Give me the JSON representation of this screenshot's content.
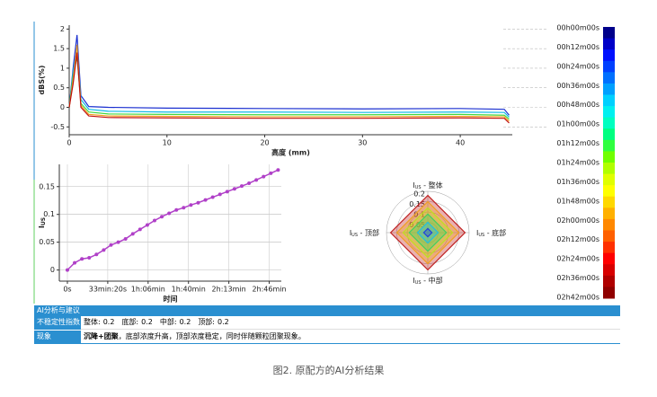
{
  "chart_data": [
    {
      "type": "line",
      "ylabel": "dBS(%)",
      "xlabel": "高度 (mm)",
      "x": [
        0,
        0.4,
        0.8,
        1.2,
        2,
        4,
        10,
        20,
        30,
        40,
        44.5,
        45
      ],
      "series": [
        {
          "color": "#1a2fd0",
          "values": [
            0,
            1.0,
            1.85,
            0.3,
            0.02,
            0,
            -0.02,
            -0.03,
            -0.04,
            -0.03,
            -0.05,
            -0.2
          ]
        },
        {
          "color": "#10b8e8",
          "values": [
            0,
            0.9,
            1.5,
            0.2,
            -0.05,
            -0.1,
            -0.12,
            -0.12,
            -0.13,
            -0.12,
            -0.13,
            -0.25
          ]
        },
        {
          "color": "#40d840",
          "values": [
            0,
            0.8,
            1.3,
            0.1,
            -0.12,
            -0.17,
            -0.18,
            -0.19,
            -0.19,
            -0.18,
            -0.2,
            -0.3
          ]
        },
        {
          "color": "#f0a020",
          "values": [
            0,
            0.7,
            1.6,
            0.05,
            -0.18,
            -0.22,
            -0.23,
            -0.24,
            -0.24,
            -0.23,
            -0.24,
            -0.35
          ]
        },
        {
          "color": "#c01010",
          "values": [
            0,
            0.6,
            1.4,
            0,
            -0.22,
            -0.26,
            -0.27,
            -0.28,
            -0.28,
            -0.27,
            -0.28,
            -0.4
          ]
        }
      ],
      "xlim": [
        0,
        49
      ],
      "xticks": [
        0,
        10,
        20,
        30,
        40
      ],
      "ylim": [
        -0.7,
        2.1
      ],
      "yticks": [
        -0.5,
        0,
        0.5,
        1,
        1.5,
        2
      ],
      "grid": true,
      "colorbar": {
        "colors": [
          "#00008b",
          "#0000c8",
          "#0010ff",
          "#0040ff",
          "#0070ff",
          "#00a0ff",
          "#00d0ff",
          "#00f0f0",
          "#00ffc0",
          "#00ff80",
          "#30ff40",
          "#70ff00",
          "#b0ff00",
          "#e0ff00",
          "#ffff00",
          "#ffd800",
          "#ffb000",
          "#ff8800",
          "#ff6000",
          "#ff3000",
          "#ff0000",
          "#d80000",
          "#b00000",
          "#900000"
        ],
        "labels": [
          "00h00m00s",
          "00h12m00s",
          "00h24m00s",
          "00h36m00s",
          "00h48m00s",
          "01h00m00s",
          "01h12m00s",
          "01h24m00s",
          "01h36m00s",
          "01h48m00s",
          "02h00m00s",
          "02h12m00s",
          "02h24m00s",
          "02h36m00s",
          "02h42m00s"
        ]
      }
    },
    {
      "type": "line",
      "ylabel": "I",
      "ylabel_sub": "US",
      "xlabel": "时间",
      "color": "#b040c8",
      "x": [
        0,
        360,
        720,
        1080,
        1440,
        1800,
        2160,
        2520,
        2880,
        3240,
        3600,
        3960,
        4320,
        4680,
        5040,
        5400,
        5760,
        6120,
        6480,
        6840,
        7200,
        7560,
        7920,
        8280,
        8640,
        9000,
        9360,
        9720,
        10080,
        10440
      ],
      "values": [
        0,
        0.013,
        0.02,
        0.022,
        0.028,
        0.036,
        0.045,
        0.05,
        0.056,
        0.065,
        0.073,
        0.081,
        0.089,
        0.096,
        0.102,
        0.108,
        0.112,
        0.117,
        0.121,
        0.126,
        0.131,
        0.136,
        0.141,
        0.146,
        0.151,
        0.156,
        0.162,
        0.168,
        0.174,
        0.18
      ],
      "xlim": [
        -400,
        10600
      ],
      "xticks": [
        {
          "value": 0,
          "label": "0s"
        },
        {
          "value": 2000,
          "label": "33min:20s"
        },
        {
          "value": 4000,
          "label": "1h:06min"
        },
        {
          "value": 6000,
          "label": "1h:40min"
        },
        {
          "value": 8000,
          "label": "2h:13min"
        },
        {
          "value": 10000,
          "label": "2h:46min"
        }
      ],
      "ylim": [
        -0.02,
        0.19
      ],
      "yticks": [
        0,
        0.05,
        0.1,
        0.15
      ],
      "grid": true
    },
    {
      "type": "radar",
      "axes": [
        {
          "main": "I",
          "sub": "US",
          "label": " - 整体"
        },
        {
          "main": "I",
          "sub": "US",
          "label": " - 底部"
        },
        {
          "main": "I",
          "sub": "US",
          "label": " - 中部"
        },
        {
          "main": "I",
          "sub": "US",
          "label": " - 顶部"
        }
      ],
      "rlim": [
        0,
        0.2
      ],
      "rticks": [
        0.05,
        0.1,
        0.15,
        0.2
      ],
      "series": [
        {
          "color": "#2040e0",
          "values": [
            0.02,
            0.02,
            0.02,
            0.02
          ]
        },
        {
          "color": "#20c0e0",
          "values": [
            0.05,
            0.05,
            0.05,
            0.05
          ]
        },
        {
          "color": "#40d060",
          "values": [
            0.09,
            0.09,
            0.09,
            0.09
          ]
        },
        {
          "color": "#c0e020",
          "values": [
            0.12,
            0.12,
            0.12,
            0.12
          ]
        },
        {
          "color": "#f0a020",
          "values": [
            0.15,
            0.15,
            0.15,
            0.15
          ]
        },
        {
          "color": "#c02020",
          "values": [
            0.18,
            0.18,
            0.18,
            0.18
          ]
        }
      ]
    }
  ],
  "panel": {
    "title": "AI分析与建议",
    "instability": {
      "label": "不稳定性指数",
      "items": [
        {
          "name": "整体:",
          "value": 0.2
        },
        {
          "name": "底部:",
          "value": 0.2
        },
        {
          "name": "中部:",
          "value": 0.2
        },
        {
          "name": "顶部:",
          "value": 0.2
        }
      ]
    },
    "phenomenon": {
      "label": "现象",
      "highlight": "沉降+团聚",
      "text": "，底部浓度升高，顶部浓度稳定，同时伴随颗粒团聚现象。"
    }
  },
  "caption": "图2. 原配方的AI分析结果"
}
